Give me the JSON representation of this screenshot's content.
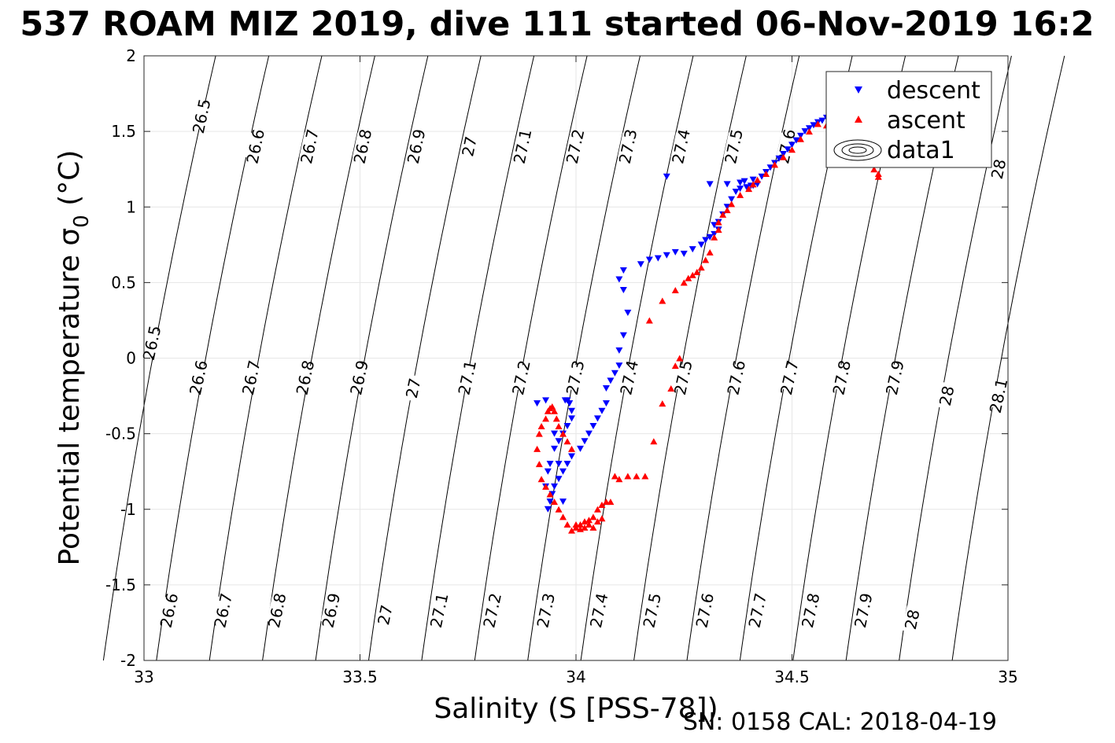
{
  "chart_data": {
    "type": "scatter",
    "title": "537 ROAM MIZ 2019, dive 111 started 06-Nov-2019 16:2",
    "xlabel": "Salinity (S [PSS-78])",
    "ylabel_main": "Potential temperature σ",
    "ylabel_sub": "0",
    "ylabel_unit": " (°C)",
    "footer": "SN: 0158  CAL: 2018-04-19",
    "xlim": [
      33,
      35
    ],
    "ylim": [
      -2,
      2
    ],
    "x_ticks": [
      33,
      33.5,
      34,
      34.5,
      35
    ],
    "x_tick_labels": [
      "33",
      "33.5",
      "34",
      "34.5",
      "35"
    ],
    "y_ticks": [
      2,
      1.5,
      1,
      0.5,
      0,
      -0.5,
      -1,
      -1.5,
      -2
    ],
    "y_tick_labels": [
      "2",
      "1.5",
      "1",
      "0.5",
      "0",
      "-0.5",
      "-1",
      "-1.5",
      "-2"
    ],
    "grid": true,
    "legend_position": "top-right",
    "legend": [
      "descent",
      "ascent",
      "data1"
    ],
    "density_contours": {
      "levels": [
        26.5,
        26.6,
        26.7,
        26.8,
        26.9,
        27,
        27.1,
        27.2,
        27.3,
        27.4,
        27.5,
        27.6,
        27.7,
        27.8,
        27.9,
        28,
        28.1
      ],
      "labels_top": [
        {
          "text": "26.5",
          "x": 33.135,
          "y": 1.6
        },
        {
          "text": "26.6",
          "x": 33.26,
          "y": 1.4
        },
        {
          "text": "26.7",
          "x": 33.385,
          "y": 1.4
        },
        {
          "text": "26.8",
          "x": 33.508,
          "y": 1.4
        },
        {
          "text": "26.9",
          "x": 33.632,
          "y": 1.4
        },
        {
          "text": "27",
          "x": 33.755,
          "y": 1.4
        },
        {
          "text": "27.1",
          "x": 33.878,
          "y": 1.4
        },
        {
          "text": "27.2",
          "x": 34.0,
          "y": 1.4
        },
        {
          "text": "27.3",
          "x": 34.122,
          "y": 1.4
        },
        {
          "text": "27.4",
          "x": 34.245,
          "y": 1.4
        },
        {
          "text": "27.5",
          "x": 34.367,
          "y": 1.4
        },
        {
          "text": "27.6",
          "x": 34.489,
          "y": 1.4
        },
        {
          "text": "28",
          "x": 34.98,
          "y": 1.25
        }
      ],
      "labels_mid": [
        {
          "text": "26.5",
          "x": 33.02,
          "y": 0.1
        },
        {
          "text": "26.6",
          "x": 33.128,
          "y": -0.13
        },
        {
          "text": "26.7",
          "x": 33.25,
          "y": -0.13
        },
        {
          "text": "26.8",
          "x": 33.375,
          "y": -0.13
        },
        {
          "text": "26.9",
          "x": 33.5,
          "y": -0.13
        },
        {
          "text": "27",
          "x": 33.625,
          "y": -0.2
        },
        {
          "text": "27.1",
          "x": 33.75,
          "y": -0.13
        },
        {
          "text": "27.2",
          "x": 33.875,
          "y": -0.13
        },
        {
          "text": "27.3",
          "x": 34.0,
          "y": -0.13
        },
        {
          "text": "27.4",
          "x": 34.125,
          "y": -0.13
        },
        {
          "text": "27.5",
          "x": 34.25,
          "y": -0.13
        },
        {
          "text": "27.6",
          "x": 34.373,
          "y": -0.13
        },
        {
          "text": "27.7",
          "x": 34.496,
          "y": -0.13
        },
        {
          "text": "27.8",
          "x": 34.617,
          "y": -0.13
        },
        {
          "text": "27.9",
          "x": 34.74,
          "y": -0.13
        },
        {
          "text": "28",
          "x": 34.86,
          "y": -0.25
        },
        {
          "text": "28.1",
          "x": 34.98,
          "y": -0.25
        }
      ],
      "labels_bottom": [
        {
          "text": "26.6",
          "x": 33.06,
          "y": -1.67
        },
        {
          "text": "26.7",
          "x": 33.185,
          "y": -1.67
        },
        {
          "text": "26.8",
          "x": 33.31,
          "y": -1.67
        },
        {
          "text": "26.9",
          "x": 33.435,
          "y": -1.67
        },
        {
          "text": "27",
          "x": 33.56,
          "y": -1.7
        },
        {
          "text": "27.1",
          "x": 33.685,
          "y": -1.67
        },
        {
          "text": "27.2",
          "x": 33.808,
          "y": -1.67
        },
        {
          "text": "27.3",
          "x": 33.932,
          "y": -1.67
        },
        {
          "text": "27.4",
          "x": 34.055,
          "y": -1.67
        },
        {
          "text": "27.5",
          "x": 34.178,
          "y": -1.67
        },
        {
          "text": "27.6",
          "x": 34.3,
          "y": -1.67
        },
        {
          "text": "27.7",
          "x": 34.422,
          "y": -1.67
        },
        {
          "text": "27.8",
          "x": 34.545,
          "y": -1.67
        },
        {
          "text": "27.9",
          "x": 34.667,
          "y": -1.67
        },
        {
          "text": "28",
          "x": 34.78,
          "y": -1.73
        }
      ]
    },
    "series": [
      {
        "name": "descent",
        "color": "#0000ff",
        "marker": "triangle-down",
        "x": [
          34.21,
          34.31,
          34.35,
          34.38,
          34.39,
          34.41,
          34.43,
          34.44,
          34.45,
          34.46,
          34.47,
          34.48,
          34.49,
          34.5,
          34.51,
          34.52,
          34.53,
          34.54,
          34.55,
          34.56,
          34.57,
          34.58,
          34.59,
          34.6,
          34.61,
          34.32,
          34.33,
          34.34,
          34.35,
          34.36,
          34.37,
          34.38,
          34.395,
          34.405,
          34.41,
          34.42,
          34.25,
          34.27,
          34.29,
          34.3,
          34.31,
          34.32,
          34.33,
          34.11,
          34.15,
          34.17,
          34.19,
          34.21,
          34.23,
          34.1,
          34.11,
          34.12,
          34.11,
          34.1,
          34.1,
          34.09,
          34.08,
          34.07,
          34.07,
          34.06,
          34.05,
          34.04,
          34.03,
          34.02,
          34.01,
          33.99,
          33.98,
          33.97,
          33.96,
          33.95,
          33.945,
          33.94,
          33.935,
          33.93,
          33.935,
          33.94,
          33.95,
          33.96,
          33.97,
          33.98,
          33.99,
          33.99,
          33.985,
          33.98,
          33.975,
          33.91,
          33.93,
          33.95,
          33.96,
          33.97
        ],
        "y": [
          1.2,
          1.15,
          1.15,
          1.16,
          1.17,
          1.18,
          1.2,
          1.23,
          1.26,
          1.29,
          1.32,
          1.35,
          1.38,
          1.41,
          1.44,
          1.47,
          1.5,
          1.52,
          1.54,
          1.56,
          1.57,
          1.59,
          1.6,
          1.6,
          1.62,
          0.88,
          0.9,
          0.95,
          1.0,
          1.05,
          1.1,
          1.12,
          1.13,
          1.14,
          1.14,
          1.15,
          0.69,
          0.72,
          0.75,
          0.78,
          0.8,
          0.82,
          0.85,
          0.58,
          0.62,
          0.65,
          0.66,
          0.68,
          0.7,
          0.52,
          0.45,
          0.3,
          0.15,
          0.05,
          -0.05,
          -0.1,
          -0.15,
          -0.2,
          -0.3,
          -0.35,
          -0.4,
          -0.45,
          -0.5,
          -0.55,
          -0.6,
          -0.65,
          -0.7,
          -0.75,
          -0.8,
          -0.85,
          -0.9,
          -0.95,
          -1.0,
          -0.85,
          -0.75,
          -0.7,
          -0.6,
          -0.55,
          -0.5,
          -0.45,
          -0.4,
          -0.35,
          -0.3,
          -0.28,
          -0.28,
          -0.3,
          -0.28,
          -0.5,
          -0.7,
          -0.95
        ]
      },
      {
        "name": "ascent",
        "color": "#ff0000",
        "marker": "triangle-up",
        "x": [
          34.7,
          34.7,
          34.69,
          34.68,
          34.67,
          34.66,
          34.65,
          34.64,
          34.63,
          34.62,
          34.6,
          34.58,
          34.56,
          34.54,
          34.52,
          34.5,
          34.48,
          34.46,
          34.44,
          34.42,
          34.41,
          34.4,
          34.38,
          34.36,
          34.35,
          34.34,
          34.33,
          34.33,
          34.32,
          34.31,
          34.3,
          34.29,
          34.28,
          34.27,
          34.26,
          34.25,
          34.23,
          34.2,
          34.17,
          34.24,
          34.23,
          34.22,
          34.2,
          34.18,
          34.16,
          34.14,
          34.12,
          34.1,
          34.09,
          34.08,
          34.07,
          34.06,
          34.05,
          34.04,
          34.03,
          34.02,
          34.01,
          34.0,
          33.99,
          33.98,
          33.97,
          33.96,
          33.95,
          33.94,
          33.93,
          33.92,
          33.915,
          33.91,
          33.915,
          33.92,
          33.93,
          33.935,
          33.94,
          33.945,
          33.95,
          33.955,
          33.96,
          33.97,
          33.98,
          33.99,
          34.0,
          34.01,
          34.02,
          34.03,
          34.04,
          34.05,
          34.06
        ],
        "y": [
          1.2,
          1.22,
          1.25,
          1.3,
          1.35,
          1.4,
          1.42,
          1.45,
          1.48,
          1.5,
          1.52,
          1.54,
          1.55,
          1.5,
          1.45,
          1.38,
          1.33,
          1.28,
          1.22,
          1.18,
          1.15,
          1.12,
          1.08,
          1.02,
          0.98,
          0.95,
          0.9,
          0.85,
          0.8,
          0.7,
          0.65,
          0.6,
          0.57,
          0.55,
          0.53,
          0.5,
          0.45,
          0.38,
          0.25,
          0.0,
          -0.05,
          -0.2,
          -0.3,
          -0.55,
          -0.78,
          -0.78,
          -0.78,
          -0.8,
          -0.78,
          -0.95,
          -0.95,
          -0.97,
          -1.0,
          -1.05,
          -1.07,
          -1.08,
          -1.1,
          -1.12,
          -1.14,
          -1.1,
          -1.05,
          -1.0,
          -0.95,
          -0.9,
          -0.85,
          -0.8,
          -0.7,
          -0.6,
          -0.5,
          -0.45,
          -0.4,
          -0.35,
          -0.33,
          -0.32,
          -0.35,
          -0.4,
          -0.45,
          -0.5,
          -0.55,
          -0.6,
          -1.1,
          -1.13,
          -1.12,
          -1.1,
          -1.12,
          -1.08,
          -1.06
        ]
      }
    ]
  }
}
